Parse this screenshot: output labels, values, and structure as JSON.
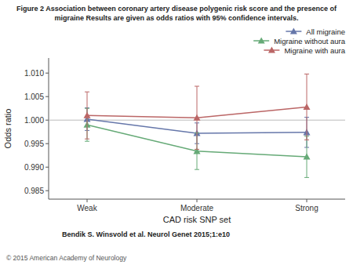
{
  "chart_data": {
    "type": "line",
    "title": "Figure 2 Association between coronary artery disease polygenic risk score and the presence of",
    "subtitle": "migraine Results are given as odds ratios with 95% confidence intervals.",
    "x_label": "CAD risk SNP set",
    "y_label": "Odds ratio",
    "categories": [
      "Weak",
      "Moderate",
      "Strong"
    ],
    "reference_line": 1.0,
    "series": [
      {
        "name": "All migraine",
        "color": "#6677aa",
        "marker": "triangle",
        "line_style": "solid",
        "values": [
          1.0002,
          0.9972,
          0.9974
        ],
        "ci_low": [
          0.9978,
          0.995,
          0.9942
        ],
        "ci_high": [
          1.0026,
          0.9994,
          1.0006
        ]
      },
      {
        "name": "Migraine without aura",
        "color": "#66aa77",
        "marker": "triangle",
        "line_style": "solid",
        "values": [
          0.999,
          0.9934,
          0.9922
        ],
        "ci_low": [
          0.9955,
          0.9895,
          0.9878
        ],
        "ci_high": [
          1.0025,
          0.9973,
          0.9966
        ]
      },
      {
        "name": "Migraine with aura",
        "color": "#bb6666",
        "marker": "triangle",
        "line_style": "solid",
        "values": [
          1.001,
          1.0005,
          1.0028
        ],
        "ci_low": [
          0.996,
          0.9938,
          0.9958
        ],
        "ci_high": [
          1.006,
          1.0072,
          1.0098
        ]
      }
    ],
    "ylim": [
      0.9832,
      1.0132
    ],
    "yticks": [
      0.985,
      {
        "value": 0.99,
        "label": "0.990"
      },
      0.995,
      {
        "value": 1.0,
        "label": "1.000"
      },
      1.005,
      {
        "value": 1.01,
        "label": "1.010"
      }
    ],
    "grid": false,
    "legend": "upper right",
    "annotations": [
      "Bendik S. Winsvold et al. Neurol Genet 2015;1:e10",
      "© 2015 American Academy of Neurology"
    ]
  }
}
